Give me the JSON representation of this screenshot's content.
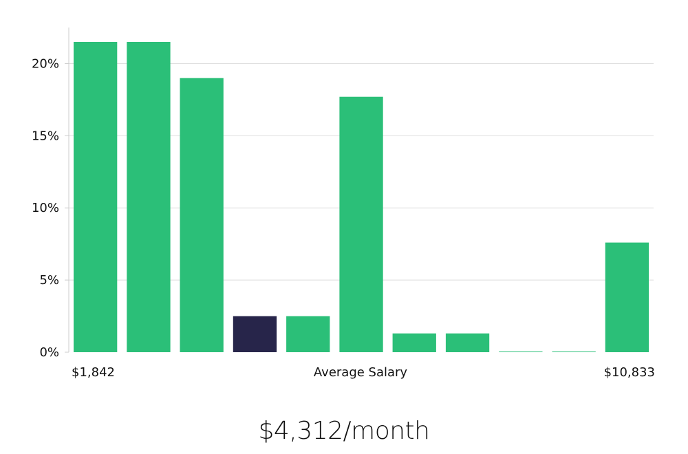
{
  "chart_data": {
    "type": "bar",
    "values": [
      21.5,
      21.5,
      19.0,
      2.5,
      2.5,
      17.7,
      1.3,
      1.3,
      0.05,
      0.05,
      7.6
    ],
    "highlight_index": 3,
    "ylim": [
      0,
      22.5
    ],
    "y_ticks": [
      {
        "value": 0,
        "label": "0%"
      },
      {
        "value": 5,
        "label": "5%"
      },
      {
        "value": 10,
        "label": "10%"
      },
      {
        "value": 15,
        "label": "15%"
      },
      {
        "value": 20,
        "label": "20%"
      }
    ],
    "x_min_label": "$1,842",
    "x_center_label": "Average Salary",
    "x_max_label": "$10,833",
    "grid": true,
    "colors": {
      "bar": "#2bbf78",
      "highlight": "#27254a",
      "grid": "#dddddd",
      "axis": "#cccccc"
    }
  },
  "caption": "$4,312/month"
}
